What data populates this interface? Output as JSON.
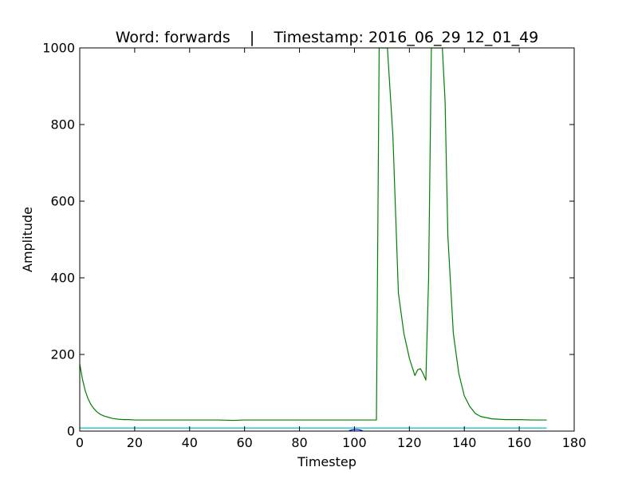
{
  "chart_data": {
    "type": "line",
    "title": "Word: forwards    |    Timestamp: 2016_06_29 12_01_49",
    "xlabel": "Timestep",
    "ylabel": "Amplitude",
    "xlim": [
      0,
      180
    ],
    "ylim": [
      0,
      1000
    ],
    "xticks": [
      0,
      20,
      40,
      60,
      80,
      100,
      120,
      140,
      160,
      180
    ],
    "yticks": [
      0,
      200,
      400,
      600,
      800,
      1000
    ],
    "grid": false,
    "legend": "none",
    "series": [
      {
        "color": "#008000",
        "x": [
          0,
          1,
          2,
          3,
          4,
          5,
          6,
          7,
          8,
          9,
          10,
          12,
          14,
          16,
          18,
          20,
          25,
          30,
          40,
          50,
          56,
          60,
          70,
          80,
          90,
          100,
          106,
          107,
          108,
          109,
          110,
          111,
          112,
          114,
          116,
          118,
          120,
          122,
          123,
          124,
          125,
          126,
          127,
          128,
          129,
          131,
          132,
          133,
          134,
          136,
          138,
          140,
          142,
          144,
          146,
          150,
          155,
          160,
          165,
          170
        ],
        "y": [
          175,
          135,
          105,
          85,
          70,
          60,
          52,
          46,
          42,
          39,
          37,
          33,
          31,
          30,
          30,
          29,
          29,
          29,
          29,
          29,
          28,
          29,
          29,
          29,
          29,
          29,
          29,
          29,
          29,
          1000,
          1000,
          1000,
          1000,
          770,
          360,
          255,
          190,
          145,
          160,
          163,
          150,
          133,
          400,
          1000,
          1000,
          1000,
          1000,
          860,
          510,
          255,
          150,
          92,
          64,
          46,
          38,
          32,
          30,
          30,
          29,
          29
        ]
      },
      {
        "color": "#00bfbf",
        "x": [
          0,
          170
        ],
        "y": [
          8,
          8
        ]
      },
      {
        "color": "#0000ff",
        "x": [
          98,
          99,
          100,
          101,
          102,
          103
        ],
        "y": [
          1,
          3,
          4,
          4,
          3,
          1
        ]
      }
    ]
  }
}
